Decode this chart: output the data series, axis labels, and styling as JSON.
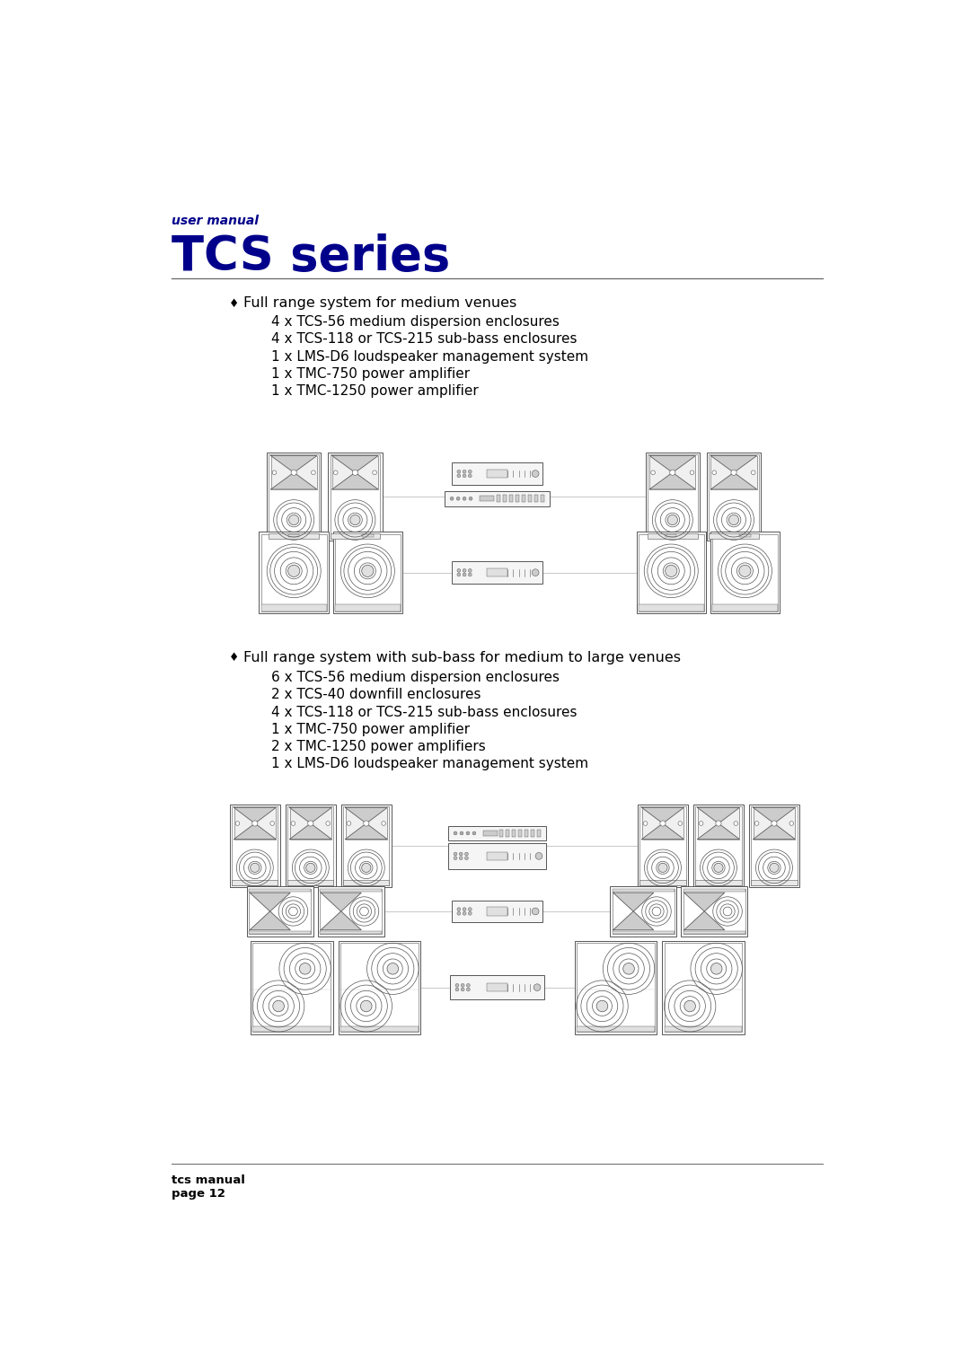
{
  "bg_color": "#ffffff",
  "header_label": "user manual",
  "header_title": "TCS series",
  "header_color": "#00008B",
  "divider_color": "#666666",
  "bullet_char": "♦",
  "section1_title": "Full range system for medium venues",
  "section1_items": [
    "4 x TCS-56 medium dispersion enclosures",
    "4 x TCS-118 or TCS-215 sub-bass enclosures",
    "1 x LMS-D6 loudspeaker management system",
    "1 x TMC-750 power amplifier",
    "1 x TMC-1250 power amplifier"
  ],
  "section2_title": "Full range system with sub-bass for medium to large venues",
  "section2_items": [
    "6 x TCS-56 medium dispersion enclosures",
    "2 x TCS-40 downfill enclosures",
    "4 x TCS-118 or TCS-215 sub-bass enclosures",
    "1 x TMC-750 power amplifier",
    "2 x TMC-1250 power amplifiers",
    "1 x LMS-D6 loudspeaker management system"
  ],
  "footer_line1": "tcs manual",
  "footer_line2": "page 12",
  "text_color": "#000000",
  "body_font_size": 11.5,
  "item_font_size": 11,
  "footer_font_size": 9.5
}
